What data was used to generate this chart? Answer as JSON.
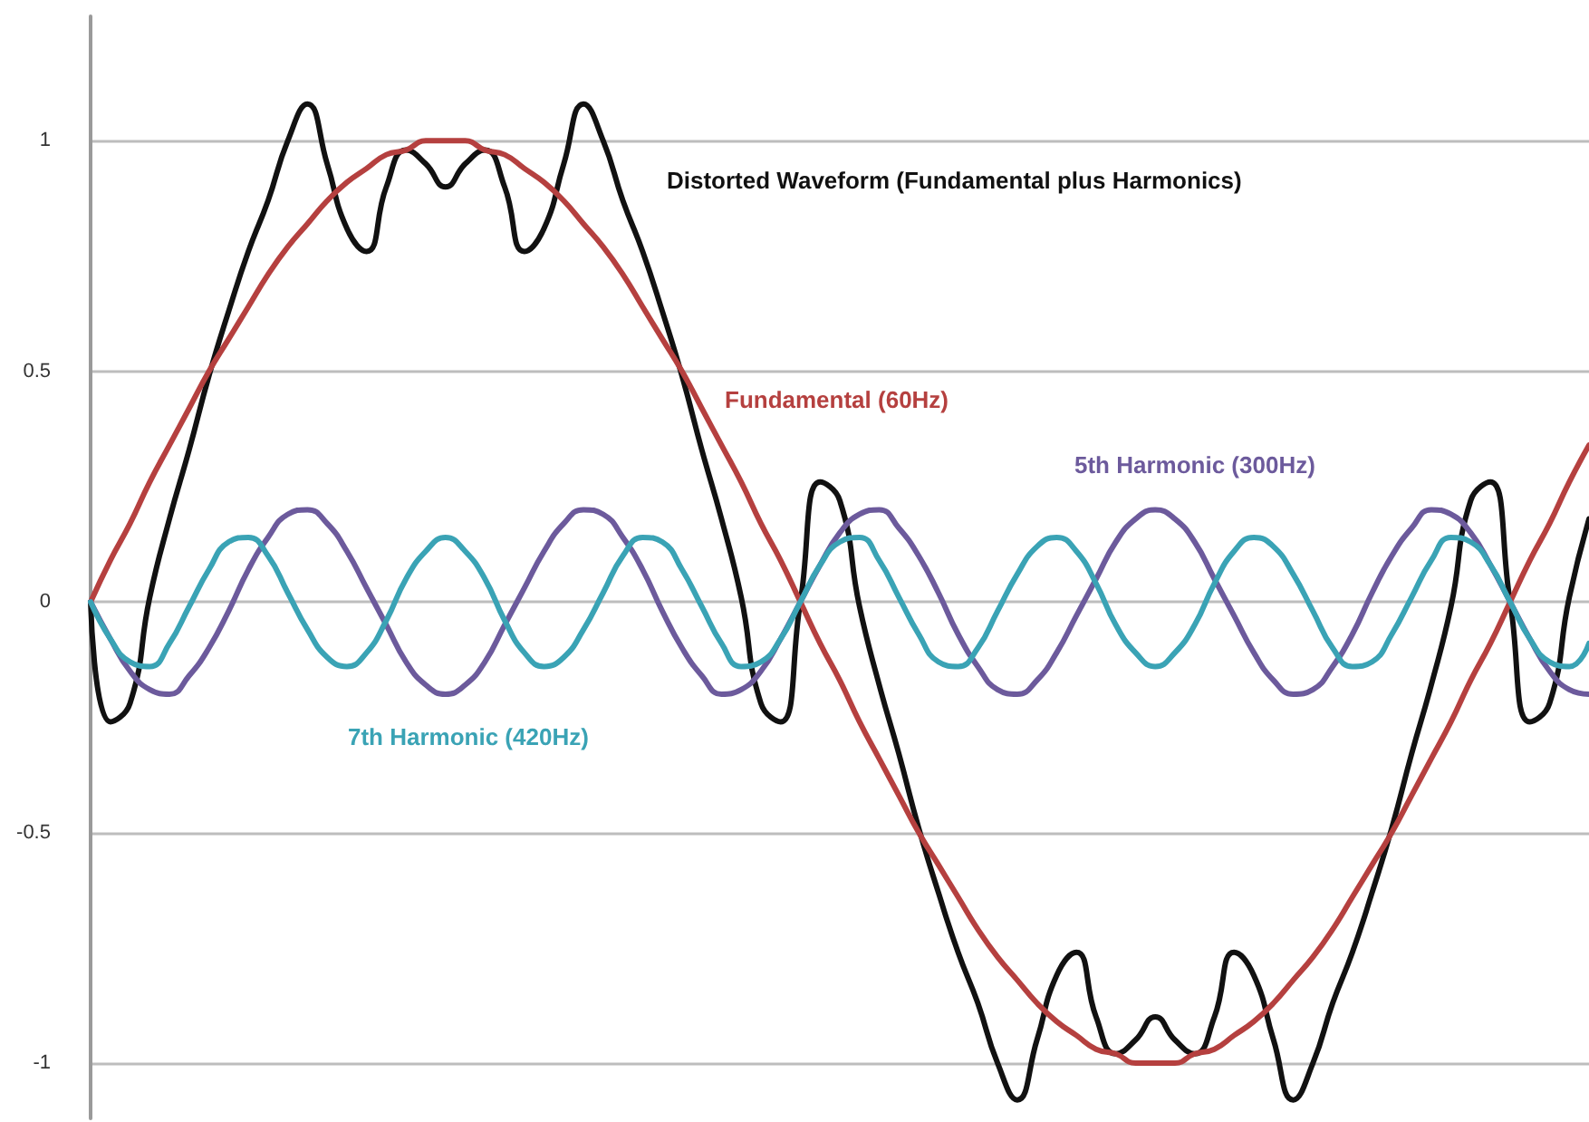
{
  "chart_data": {
    "type": "line",
    "categories": [
      null,
      null,
      null,
      null,
      null,
      null,
      null,
      null,
      null,
      null,
      null,
      null,
      null,
      null,
      null,
      null,
      null,
      null,
      null,
      null,
      null,
      null,
      null,
      null,
      null,
      null,
      null,
      null,
      null,
      null,
      null,
      null,
      null,
      null,
      null,
      null,
      null,
      null,
      null,
      null,
      null,
      null,
      null,
      null,
      null,
      null,
      null,
      null,
      null,
      null,
      null,
      null,
      null,
      null,
      null,
      null,
      null,
      null,
      null,
      null,
      null,
      null,
      null,
      null,
      null,
      null,
      null,
      null,
      null,
      null,
      null,
      null,
      null,
      null,
      null,
      null,
      null
    ],
    "series": [
      {
        "name": "Distorted Waveform (Fundamental plus Harmonics)",
        "color": "#111111",
        "values": [
          0,
          -0.26,
          -0.22,
          0.01,
          0.18,
          0.33,
          0.49,
          0.63,
          0.76,
          0.87,
          1.0,
          1.08,
          0.95,
          0.81,
          0.76,
          0.9,
          0.98,
          0.95,
          0.9,
          0.95,
          0.98,
          0.9,
          0.76,
          0.81,
          0.95,
          1.08,
          1.0,
          0.87,
          0.76,
          0.63,
          0.49,
          0.33,
          0.18,
          0.01,
          -0.22,
          -0.26,
          0,
          0.26,
          0.22,
          -0.01,
          -0.18,
          -0.33,
          -0.49,
          -0.63,
          -0.76,
          -0.87,
          -1.0,
          -1.08,
          -0.95,
          -0.81,
          -0.76,
          -0.9,
          -0.98,
          -0.95,
          -0.9,
          -0.95,
          -0.98,
          -0.9,
          -0.76,
          -0.81,
          -0.95,
          -1.08,
          -1.0,
          -0.87,
          -0.76,
          -0.63,
          -0.49,
          -0.33,
          -0.18,
          -0.01,
          0.22,
          0.26,
          0,
          -0.26,
          -0.22,
          0.01,
          0.18
        ]
      },
      {
        "name": "Fundamental (60Hz)",
        "color": "#b5403f",
        "values": [
          0,
          0.09,
          0.17,
          0.26,
          0.34,
          0.42,
          0.5,
          0.57,
          0.64,
          0.71,
          0.77,
          0.82,
          0.87,
          0.91,
          0.94,
          0.97,
          0.98,
          1.0,
          1,
          1.0,
          0.98,
          0.97,
          0.94,
          0.91,
          0.87,
          0.82,
          0.77,
          0.71,
          0.64,
          0.57,
          0.5,
          0.42,
          0.34,
          0.26,
          0.17,
          0.09,
          0,
          -0.09,
          -0.17,
          -0.26,
          -0.34,
          -0.42,
          -0.5,
          -0.57,
          -0.64,
          -0.71,
          -0.77,
          -0.82,
          -0.87,
          -0.91,
          -0.94,
          -0.97,
          -0.98,
          -1.0,
          -1,
          -1.0,
          -0.98,
          -0.97,
          -0.94,
          -0.91,
          -0.87,
          -0.82,
          -0.77,
          -0.71,
          -0.64,
          -0.57,
          -0.5,
          -0.42,
          -0.34,
          -0.26,
          -0.17,
          -0.09,
          0,
          0.09,
          0.17,
          0.26,
          0.34
        ]
      },
      {
        "name": "5th Harmonic (300Hz)",
        "color": "#6c5a9c",
        "values": [
          0,
          -0.08,
          -0.15,
          -0.19,
          -0.2,
          -0.16,
          -0.1,
          -0.02,
          0.07,
          0.14,
          0.19,
          0.2,
          0.17,
          0.11,
          0.03,
          -0.05,
          -0.13,
          -0.18,
          -0.2,
          -0.18,
          -0.13,
          -0.05,
          0.03,
          0.11,
          0.17,
          0.2,
          0.19,
          0.14,
          0.07,
          -0.02,
          -0.1,
          -0.16,
          -0.2,
          -0.19,
          -0.15,
          -0.08,
          0,
          0.08,
          0.15,
          0.19,
          0.2,
          0.16,
          0.1,
          0.02,
          -0.07,
          -0.14,
          -0.19,
          -0.2,
          -0.17,
          -0.11,
          -0.03,
          0.05,
          0.13,
          0.18,
          0.2,
          0.18,
          0.13,
          0.05,
          -0.03,
          -0.11,
          -0.17,
          -0.2,
          -0.19,
          -0.14,
          -0.07,
          0.02,
          0.1,
          0.16,
          0.2,
          0.19,
          0.15,
          0.08,
          0,
          -0.08,
          -0.15,
          -0.19,
          -0.2
        ]
      },
      {
        "name": "7th Harmonic (420Hz)",
        "color": "#3aa3b5",
        "values": [
          0,
          -0.08,
          -0.13,
          -0.14,
          -0.09,
          -0.01,
          0.07,
          0.13,
          0.14,
          0.1,
          0.02,
          -0.06,
          -0.12,
          -0.14,
          -0.11,
          -0.04,
          0.05,
          0.11,
          0.14,
          0.11,
          0.05,
          -0.04,
          -0.11,
          -0.14,
          -0.12,
          -0.06,
          0.02,
          0.1,
          0.14,
          0.13,
          0.07,
          -0.01,
          -0.09,
          -0.14,
          -0.13,
          -0.08,
          0,
          0.08,
          0.13,
          0.14,
          0.09,
          0.01,
          -0.07,
          -0.13,
          -0.14,
          -0.1,
          -0.02,
          0.06,
          0.12,
          0.14,
          0.11,
          0.04,
          -0.05,
          -0.11,
          -0.14,
          -0.11,
          -0.05,
          0.04,
          0.11,
          0.14,
          0.12,
          0.06,
          -0.02,
          -0.1,
          -0.14,
          -0.13,
          -0.07,
          0.01,
          0.09,
          0.14,
          0.13,
          0.08,
          0,
          -0.08,
          -0.13,
          -0.14,
          -0.09
        ]
      }
    ],
    "ylim": [
      -1.12,
      1.27
    ],
    "yticks": [
      -1,
      -0.5,
      0,
      0.5,
      1
    ],
    "grid": "y",
    "tick_labels": "y",
    "marker": "none",
    "line_style": "solid",
    "legend": false
  }
}
